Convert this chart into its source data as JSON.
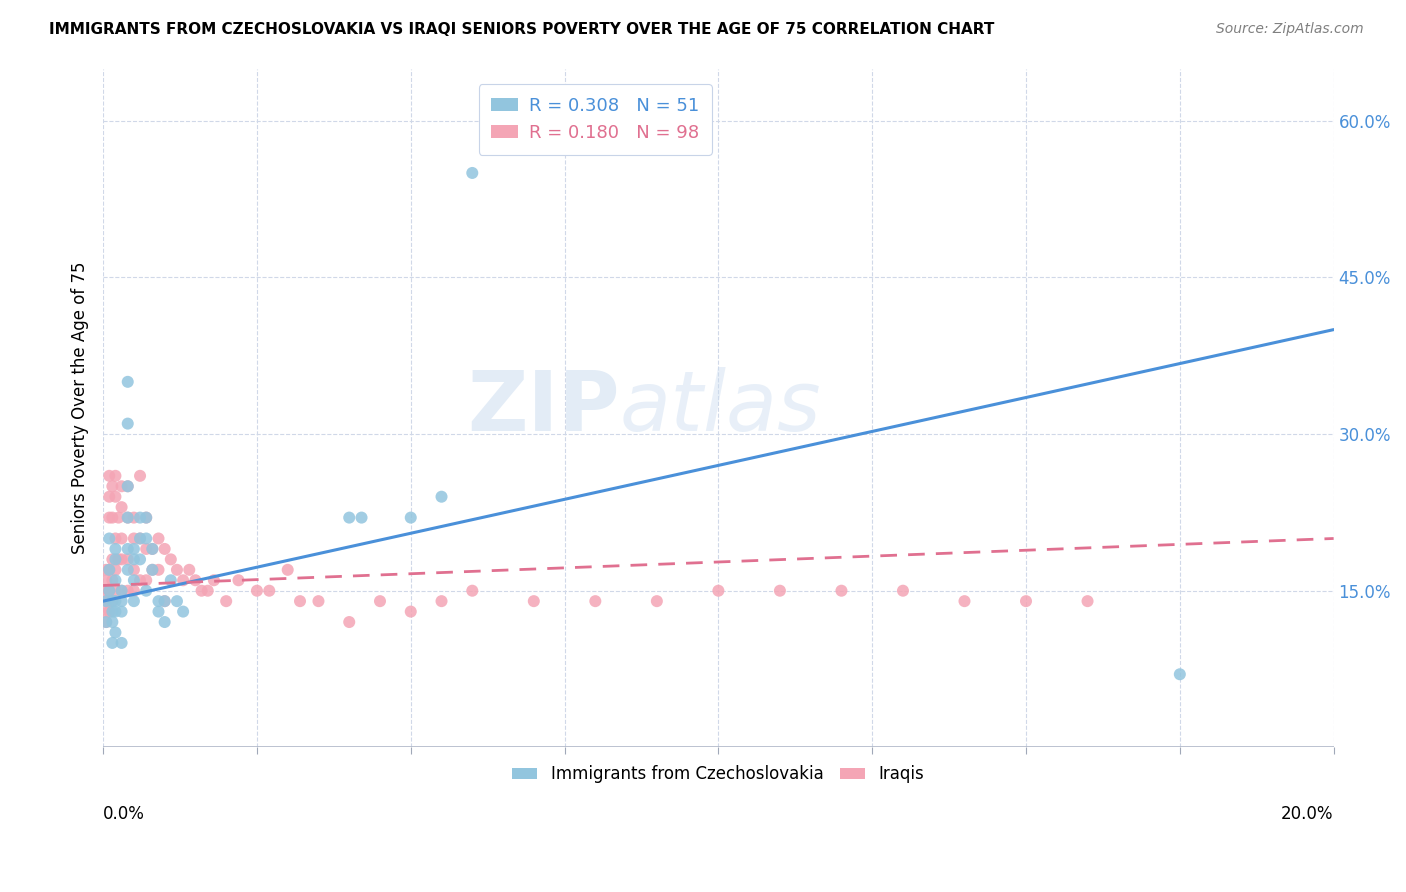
{
  "title": "IMMIGRANTS FROM CZECHOSLOVAKIA VS IRAQI SENIORS POVERTY OVER THE AGE OF 75 CORRELATION CHART",
  "source": "Source: ZipAtlas.com",
  "ylabel": "Seniors Poverty Over the Age of 75",
  "right_yticks": [
    "60.0%",
    "45.0%",
    "30.0%",
    "15.0%"
  ],
  "right_ytick_vals": [
    0.6,
    0.45,
    0.3,
    0.15
  ],
  "xlim": [
    0.0,
    0.2
  ],
  "ylim": [
    0.0,
    0.65
  ],
  "blue_R": 0.308,
  "blue_N": 51,
  "pink_R": 0.18,
  "pink_N": 98,
  "blue_color": "#92c5de",
  "pink_color": "#f4a5b5",
  "blue_line_color": "#4a90d9",
  "pink_line_color": "#e07090",
  "watermark_zip": "ZIP",
  "watermark_atlas": "atlas",
  "legend_label_blue": "Immigrants from Czechoslovakia",
  "legend_label_pink": "Iraqis",
  "blue_scatter_x": [
    0.0005,
    0.0005,
    0.001,
    0.001,
    0.001,
    0.0015,
    0.0015,
    0.0015,
    0.0015,
    0.002,
    0.002,
    0.002,
    0.002,
    0.002,
    0.002,
    0.003,
    0.003,
    0.003,
    0.003,
    0.004,
    0.004,
    0.004,
    0.004,
    0.004,
    0.004,
    0.005,
    0.005,
    0.005,
    0.005,
    0.006,
    0.006,
    0.006,
    0.007,
    0.007,
    0.007,
    0.008,
    0.008,
    0.009,
    0.009,
    0.01,
    0.01,
    0.011,
    0.012,
    0.013,
    0.04,
    0.042,
    0.05,
    0.055,
    0.06,
    0.175
  ],
  "blue_scatter_y": [
    0.14,
    0.12,
    0.2,
    0.17,
    0.15,
    0.14,
    0.13,
    0.12,
    0.1,
    0.19,
    0.18,
    0.16,
    0.14,
    0.13,
    0.11,
    0.15,
    0.14,
    0.13,
    0.1,
    0.35,
    0.31,
    0.25,
    0.22,
    0.19,
    0.17,
    0.19,
    0.18,
    0.16,
    0.14,
    0.22,
    0.2,
    0.18,
    0.22,
    0.2,
    0.15,
    0.19,
    0.17,
    0.14,
    0.13,
    0.14,
    0.12,
    0.16,
    0.14,
    0.13,
    0.22,
    0.22,
    0.22,
    0.24,
    0.55,
    0.07
  ],
  "pink_scatter_x": [
    0.0005,
    0.0005,
    0.0005,
    0.0005,
    0.0005,
    0.0005,
    0.001,
    0.001,
    0.001,
    0.001,
    0.001,
    0.001,
    0.001,
    0.0015,
    0.0015,
    0.0015,
    0.0015,
    0.0015,
    0.002,
    0.002,
    0.002,
    0.002,
    0.002,
    0.0025,
    0.0025,
    0.003,
    0.003,
    0.003,
    0.003,
    0.003,
    0.004,
    0.004,
    0.004,
    0.004,
    0.005,
    0.005,
    0.005,
    0.005,
    0.006,
    0.006,
    0.006,
    0.007,
    0.007,
    0.007,
    0.008,
    0.008,
    0.009,
    0.009,
    0.01,
    0.01,
    0.011,
    0.012,
    0.013,
    0.014,
    0.015,
    0.016,
    0.017,
    0.018,
    0.02,
    0.022,
    0.025,
    0.027,
    0.03,
    0.032,
    0.035,
    0.04,
    0.045,
    0.05,
    0.055,
    0.06,
    0.07,
    0.08,
    0.09,
    0.1,
    0.11,
    0.12,
    0.13,
    0.14,
    0.15,
    0.16
  ],
  "pink_scatter_y": [
    0.17,
    0.16,
    0.15,
    0.14,
    0.13,
    0.12,
    0.26,
    0.24,
    0.22,
    0.17,
    0.15,
    0.14,
    0.13,
    0.25,
    0.22,
    0.18,
    0.16,
    0.14,
    0.26,
    0.24,
    0.2,
    0.17,
    0.15,
    0.22,
    0.18,
    0.25,
    0.23,
    0.2,
    0.18,
    0.15,
    0.25,
    0.22,
    0.18,
    0.15,
    0.22,
    0.2,
    0.17,
    0.15,
    0.26,
    0.2,
    0.16,
    0.22,
    0.19,
    0.16,
    0.19,
    0.17,
    0.2,
    0.17,
    0.19,
    0.14,
    0.18,
    0.17,
    0.16,
    0.17,
    0.16,
    0.15,
    0.15,
    0.16,
    0.14,
    0.16,
    0.15,
    0.15,
    0.17,
    0.14,
    0.14,
    0.12,
    0.14,
    0.13,
    0.14,
    0.15,
    0.14,
    0.14,
    0.14,
    0.15,
    0.15,
    0.15,
    0.15,
    0.14,
    0.14,
    0.14
  ]
}
